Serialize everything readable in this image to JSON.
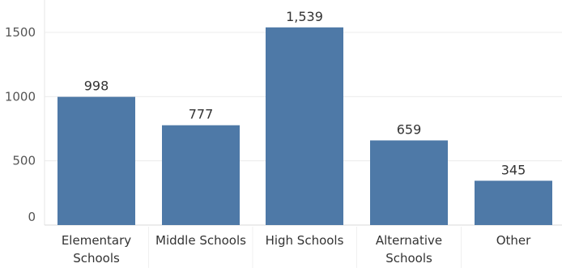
{
  "chart_data": {
    "type": "bar",
    "categories": [
      [
        "Elementary",
        "Schools"
      ],
      [
        "Middle Schools"
      ],
      [
        "High Schools"
      ],
      [
        "Alternative",
        "Schools"
      ],
      [
        "Other"
      ]
    ],
    "values": [
      998,
      777,
      1539,
      659,
      345
    ],
    "value_labels": [
      "998",
      "777",
      "1,539",
      "659",
      "345"
    ],
    "yticks": [
      0,
      500,
      1000,
      1500
    ],
    "ytick_labels": [
      "0",
      "500",
      "1000",
      "1500"
    ],
    "ylim": [
      0,
      1700
    ],
    "grid": true,
    "bar_color": "#4e79a7",
    "title": "",
    "xlabel": "",
    "ylabel": ""
  }
}
